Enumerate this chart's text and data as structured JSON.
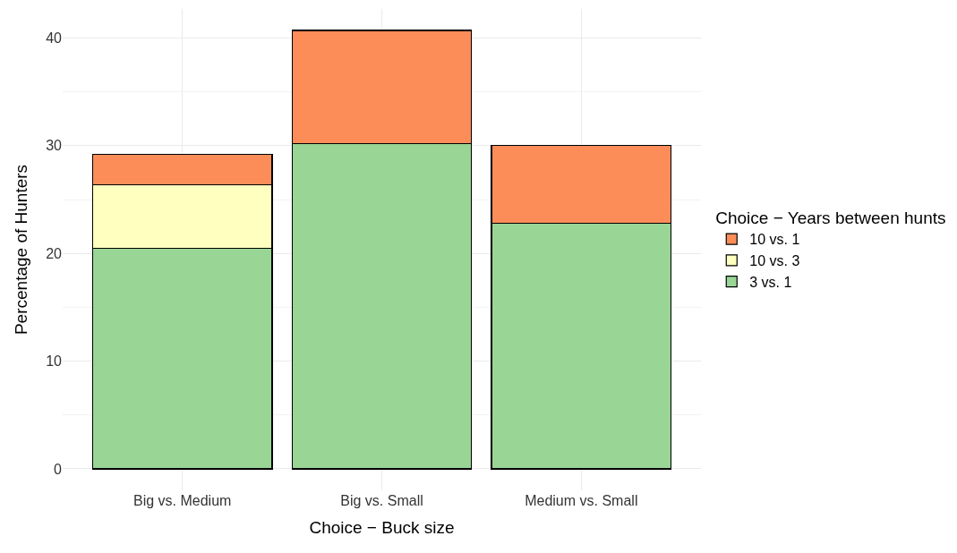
{
  "chart_data": {
    "type": "bar",
    "stacked": true,
    "xlabel": "Choice − Buck size",
    "ylabel": "Percentage of Hunters",
    "legend_title": "Choice − Years between hunts",
    "categories": [
      "Big vs. Medium",
      "Big vs. Small",
      "Medium vs. Small"
    ],
    "series": [
      {
        "name": "3 vs. 1",
        "color": "#99d594",
        "values": [
          20.5,
          30.2,
          22.8
        ]
      },
      {
        "name": "10 vs. 3",
        "color": "#ffffbf",
        "values": [
          5.9,
          null,
          null
        ]
      },
      {
        "name": "10 vs. 1",
        "color": "#fc8d59",
        "values": [
          2.8,
          10.5,
          7.2
        ]
      }
    ],
    "ylim": [
      -2,
      42.7
    ],
    "yticks": [
      0,
      10,
      20,
      30,
      40
    ],
    "grid": true,
    "legend": "right"
  }
}
